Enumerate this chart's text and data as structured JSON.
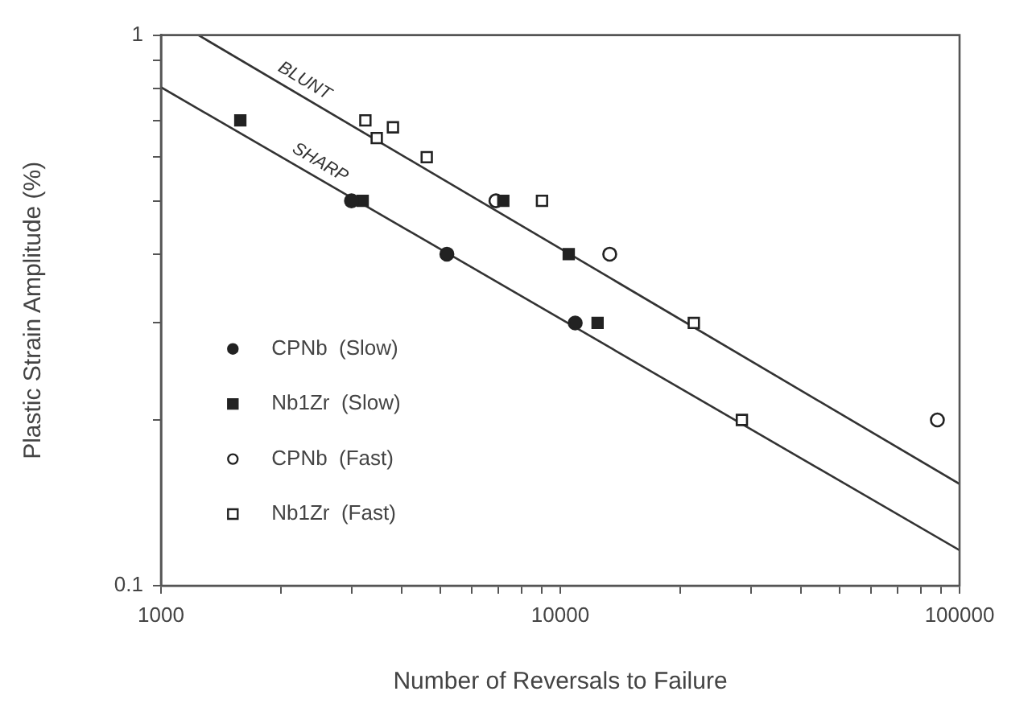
{
  "chart_data": {
    "type": "scatter",
    "xlabel": "Number of Reversals to Failure",
    "ylabel": "Plastic Strain Amplitude (%)",
    "log": "xy",
    "grid": false,
    "legend": "left",
    "xlim": [
      1000,
      100000
    ],
    "ylim": [
      0.1,
      1
    ],
    "xticks": [
      1000,
      {
        "value": 2000,
        "label": null
      },
      {
        "value": 3000,
        "label": null
      },
      {
        "value": 4000,
        "label": null
      },
      {
        "value": 5000,
        "label": null
      },
      {
        "value": 6000,
        "label": null
      },
      {
        "value": 7000,
        "label": null
      },
      {
        "value": 8000,
        "label": null
      },
      {
        "value": 9000,
        "label": null
      },
      10000,
      {
        "value": 20000,
        "label": null
      },
      {
        "value": 30000,
        "label": null
      },
      {
        "value": 40000,
        "label": null
      },
      {
        "value": 50000,
        "label": null
      },
      {
        "value": 60000,
        "label": null
      },
      {
        "value": 70000,
        "label": null
      },
      {
        "value": 80000,
        "label": null
      },
      {
        "value": 90000,
        "label": null
      },
      100000
    ],
    "yticks": [
      0.1,
      {
        "value": 0.2,
        "label": null
      },
      {
        "value": 0.3,
        "label": null
      },
      {
        "value": 0.4,
        "label": null
      },
      {
        "value": 0.5,
        "label": null
      },
      {
        "value": 0.6,
        "label": null
      },
      {
        "value": 0.7,
        "label": null
      },
      {
        "value": 0.8,
        "label": null
      },
      {
        "value": 0.9,
        "label": null
      },
      1
    ],
    "annotations": [
      "BLUNT",
      "SHARP"
    ],
    "series": [
      {
        "name": "CPNb  (Slow)",
        "color": "#222222",
        "marker": "circle",
        "x": [
          3000,
          5200,
          10900
        ],
        "values": [
          0.5,
          0.4,
          0.3
        ]
      },
      {
        "name": "Nb1Zr  (Slow)",
        "color": "#222222",
        "marker": "square",
        "x": [
          1580,
          3200,
          7200,
          10500,
          12400
        ],
        "values": [
          0.7,
          0.5,
          0.5,
          0.4,
          0.3
        ]
      },
      {
        "name": "CPNb  (Fast)",
        "color": "#ffffff",
        "marker": "circle",
        "x": [
          6900,
          13300,
          88000
        ],
        "values": [
          0.5,
          0.4,
          0.2
        ]
      },
      {
        "name": "Nb1Zr  (Fast)",
        "color": "#ffffff",
        "marker": "square",
        "x": [
          3250,
          3470,
          3810,
          4630,
          9000,
          21600,
          28500
        ],
        "values": [
          0.7,
          0.65,
          0.68,
          0.6,
          0.5,
          0.3,
          0.2
        ]
      },
      {
        "type": "line",
        "color": "#333333",
        "marker": "none",
        "x": [
          1240,
          100000
        ],
        "values": [
          1,
          0.153
        ]
      },
      {
        "type": "line",
        "color": "#333333",
        "marker": "none",
        "x": [
          1000,
          100000
        ],
        "values": [
          0.804,
          0.116
        ]
      }
    ]
  }
}
